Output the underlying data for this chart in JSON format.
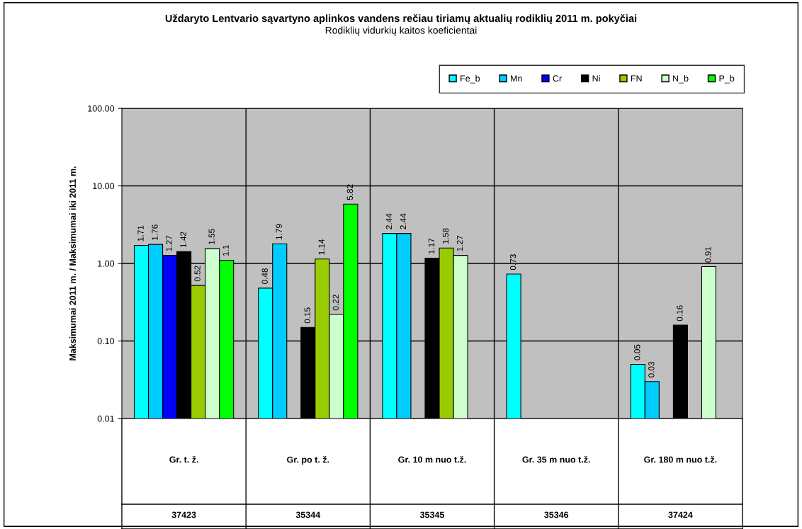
{
  "chart_data": {
    "type": "bar",
    "title": "Uždaryto Lentvario sąvartyno aplinkos vandens rečiau tiriamų aktualių rodiklių 2011 m. pokyčiai",
    "subtitle": "Rodiklių vidurkių kaitos koeficientai",
    "ylabel": "Maksimumai 2011 m. / Maksimumai iki 2011 m.",
    "categories": [
      "Gr. t. ž.\n37423",
      "Gr. po t. ž.\n35344",
      "Gr. 10 m nuo t.ž.\n35345",
      "Gr. 35 m nuo t.ž.\n35346",
      "Gr. 180 m nuo t.ž.\n37424"
    ],
    "series": [
      {
        "name": "Fe_b",
        "color": "#00ffff",
        "values": [
          1.71,
          0.48,
          2.44,
          0.73,
          0.05
        ]
      },
      {
        "name": "Mn",
        "color": "#00ccff",
        "values": [
          1.76,
          1.79,
          2.44,
          null,
          0.03
        ]
      },
      {
        "name": "Cr",
        "color": "#0000ff",
        "values": [
          1.27,
          null,
          null,
          null,
          null
        ]
      },
      {
        "name": "Ni",
        "color": "#000000",
        "values": [
          1.42,
          0.15,
          1.17,
          null,
          0.16
        ]
      },
      {
        "name": "FN",
        "color": "#99cc00",
        "values": [
          0.52,
          1.14,
          1.58,
          null,
          null
        ]
      },
      {
        "name": "N_b",
        "color": "#ccffcc",
        "values": [
          1.55,
          0.22,
          1.27,
          null,
          0.91
        ]
      },
      {
        "name": "P_b",
        "color": "#00ff00",
        "values": [
          1.1,
          5.82,
          null,
          null,
          null
        ]
      }
    ],
    "log": true,
    "ylim": [
      0.01,
      100
    ],
    "yticks": [
      {
        "value": 0.01,
        "label": "0.01"
      },
      {
        "value": 0.1,
        "label": "0.10"
      },
      {
        "value": 1,
        "label": "1.00"
      },
      {
        "value": 10,
        "label": "10.00"
      },
      {
        "value": 100,
        "label": "100.00"
      }
    ],
    "grid": true,
    "legend": "top right",
    "data_labels": true
  }
}
